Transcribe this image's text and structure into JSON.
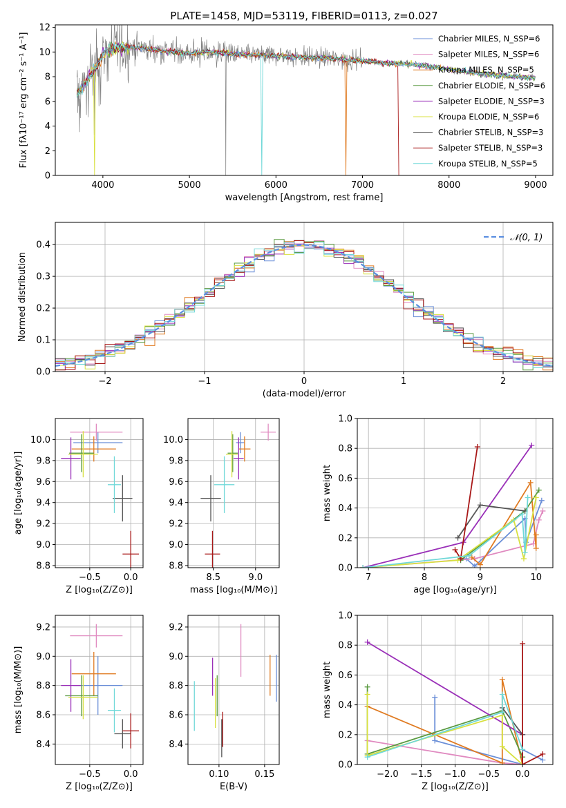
{
  "chart_data": [
    {
      "type": "line",
      "title": "PLATE=1458, MJD=53119, FIBERID=0113, z=0.027",
      "xlabel": "wavelength [Angstrom, rest frame]",
      "ylabel": "Flux [fλ10⁻¹⁷ erg cm⁻² s⁻¹ A⁻¹]",
      "xlim": [
        3450,
        9200
      ],
      "ylim": [
        0,
        12.2
      ],
      "xticks": [
        4000,
        5000,
        6000,
        7000,
        8000,
        9000
      ],
      "yticks": [
        0,
        2,
        4,
        6,
        8,
        10,
        12
      ],
      "grid": false,
      "legend_position": "top-right",
      "series": [
        {
          "name": "Chabrier MILES, N_SSP=6",
          "color": "#6b8fd8"
        },
        {
          "name": "Salpeter MILES, N_SSP=6",
          "color": "#e08ac0"
        },
        {
          "name": "Kroupa MILES, N_SSP=5",
          "color": "#e07b22"
        },
        {
          "name": "Chabrier ELODIE, N_SSP=6",
          "color": "#5a9a40"
        },
        {
          "name": "Salpeter ELODIE, N_SSP=3",
          "color": "#9a30b8"
        },
        {
          "name": "Kroupa ELODIE, N_SSP=6",
          "color": "#d8e040"
        },
        {
          "name": "Chabrier STELIB, N_SSP=3",
          "color": "#555555"
        },
        {
          "name": "Salpeter STELIB, N_SSP=3",
          "color": "#a81818"
        },
        {
          "name": "Kroupa STELIB, N_SSP=5",
          "color": "#70d8d8"
        }
      ],
      "data_color": "#808080",
      "continuum": {
        "x": [
          3700,
          3800,
          3900,
          4000,
          4100,
          4300,
          4500,
          4700,
          5000,
          5300,
          5600,
          6000,
          6300,
          6600,
          7000,
          7300,
          7600,
          8000,
          8300,
          8600,
          9000
        ],
        "y": [
          6.5,
          7.6,
          8.6,
          9.8,
          10.3,
          10.4,
          10.3,
          10.1,
          9.9,
          10.0,
          9.8,
          9.7,
          9.6,
          9.5,
          9.3,
          9.1,
          9.0,
          8.6,
          8.3,
          8.1,
          7.9
        ]
      }
    },
    {
      "type": "bar",
      "xlabel": "(data-model)/error",
      "ylabel": "Normed distribution",
      "xlim": [
        -2.5,
        2.5
      ],
      "ylim": [
        0,
        0.47
      ],
      "xticks": [
        -2,
        -1,
        0,
        1,
        2
      ],
      "yticks": [
        0.0,
        0.1,
        0.2,
        0.3,
        0.4
      ],
      "grid": true,
      "legend_position": "top-right",
      "reference_curve": {
        "name": "𝒩(0, 1)",
        "color": "#5a8ee0"
      }
    },
    {
      "type": "scatter",
      "xlabel": "Z [log₁₀(Z/Z⊙)]",
      "ylabel": "age  [log₁₀(age/yr)]",
      "xlim": [
        -0.92,
        0.15
      ],
      "ylim": [
        8.78,
        10.2
      ],
      "xticks": [
        -0.5,
        0.0
      ],
      "yticks": [
        8.8,
        9.0,
        9.2,
        9.4,
        9.6,
        9.8,
        10.0
      ],
      "grid": true,
      "points": [
        {
          "series": 0,
          "x": -0.4,
          "y": 9.97,
          "xerr": 0.3,
          "yerr": 0.1
        },
        {
          "series": 1,
          "x": -0.42,
          "y": 10.07,
          "xerr": 0.32,
          "yerr": 0.08
        },
        {
          "series": 2,
          "x": -0.45,
          "y": 9.91,
          "xerr": 0.27,
          "yerr": 0.12
        },
        {
          "series": 3,
          "x": -0.6,
          "y": 9.87,
          "xerr": 0.15,
          "yerr": 0.18
        },
        {
          "series": 4,
          "x": -0.73,
          "y": 9.82,
          "xerr": 0.12,
          "yerr": 0.2
        },
        {
          "series": 5,
          "x": -0.58,
          "y": 9.86,
          "xerr": 0.18,
          "yerr": 0.22
        },
        {
          "series": 6,
          "x": -0.1,
          "y": 9.44,
          "xerr": 0.12,
          "yerr": 0.22
        },
        {
          "series": 7,
          "x": 0.0,
          "y": 8.91,
          "xerr": 0.1,
          "yerr": 0.22
        },
        {
          "series": 8,
          "x": -0.2,
          "y": 9.57,
          "xerr": 0.08,
          "yerr": 0.27
        }
      ]
    },
    {
      "type": "scatter",
      "xlabel": "mass [log₁₀(M/M⊙)]",
      "xlim": [
        8.2,
        9.28
      ],
      "ylim": [
        8.78,
        10.2
      ],
      "xticks": [
        8.5,
        9.0
      ],
      "yticks": [
        8.8,
        9.0,
        9.2,
        9.4,
        9.6,
        9.8,
        10.0
      ],
      "grid": true,
      "points": [
        {
          "series": 0,
          "x": 8.82,
          "y": 9.97,
          "xerr": 0.05,
          "yerr": 0.1
        },
        {
          "series": 1,
          "x": 9.15,
          "y": 10.07,
          "xerr": 0.09,
          "yerr": 0.08
        },
        {
          "series": 2,
          "x": 8.87,
          "y": 9.91,
          "xerr": 0.07,
          "yerr": 0.12
        },
        {
          "series": 3,
          "x": 8.73,
          "y": 9.87,
          "xerr": 0.06,
          "yerr": 0.18
        },
        {
          "series": 4,
          "x": 8.8,
          "y": 9.82,
          "xerr": 0.06,
          "yerr": 0.2
        },
        {
          "series": 5,
          "x": 8.72,
          "y": 9.86,
          "xerr": 0.07,
          "yerr": 0.22
        },
        {
          "series": 6,
          "x": 8.47,
          "y": 9.44,
          "xerr": 0.12,
          "yerr": 0.22
        },
        {
          "series": 7,
          "x": 8.49,
          "y": 8.91,
          "xerr": 0.09,
          "yerr": 0.22
        },
        {
          "series": 8,
          "x": 8.63,
          "y": 9.57,
          "xerr": 0.12,
          "yerr": 0.27
        }
      ]
    },
    {
      "type": "line",
      "xlabel": "age  [log₁₀(age/yr)]",
      "ylabel": "mass weight",
      "xlim": [
        6.8,
        10.3
      ],
      "ylim": [
        0,
        1.0
      ],
      "xticks": [
        7,
        8,
        9,
        10
      ],
      "yticks": [
        0.0,
        0.2,
        0.4,
        0.6,
        0.8,
        1.0
      ],
      "grid": true,
      "series": [
        {
          "series": 0,
          "x": [
            8.75,
            8.9,
            9.8,
            9.82,
            10.1
          ],
          "y": [
            0.06,
            0.01,
            0.33,
            0.17,
            0.45
          ]
        },
        {
          "series": 1,
          "x": [
            6.9,
            8.9,
            9.95,
            10.05,
            10.12
          ],
          "y": [
            0.0,
            0.06,
            0.16,
            0.32,
            0.38
          ]
        },
        {
          "series": 2,
          "x": [
            8.85,
            9.0,
            9.9,
            10.0,
            10.0
          ],
          "y": [
            0.07,
            0.02,
            0.57,
            0.13,
            0.22
          ]
        },
        {
          "series": 3,
          "x": [
            8.65,
            9.8,
            10.05
          ],
          "y": [
            0.05,
            0.38,
            0.52
          ]
        },
        {
          "series": 4,
          "x": [
            6.9,
            8.7,
            9.92
          ],
          "y": [
            0.0,
            0.17,
            0.82
          ]
        },
        {
          "series": 5,
          "x": [
            6.9,
            8.6,
            9.6,
            9.78,
            10.0
          ],
          "y": [
            0.0,
            0.05,
            0.32,
            0.06,
            0.47
          ]
        },
        {
          "series": 6,
          "x": [
            8.6,
            9.0,
            9.8
          ],
          "y": [
            0.2,
            0.42,
            0.38
          ]
        },
        {
          "series": 7,
          "x": [
            8.55,
            8.65,
            8.95
          ],
          "y": [
            0.12,
            0.06,
            0.81
          ]
        },
        {
          "series": 8,
          "x": [
            6.9,
            8.8,
            9.75,
            9.8,
            9.85
          ],
          "y": [
            0.0,
            0.08,
            0.36,
            0.1,
            0.47
          ]
        }
      ]
    },
    {
      "type": "scatter",
      "xlabel": "Z [log₁₀(Z/Z⊙)]",
      "ylabel": "mass [log₁₀(M/M⊙)]",
      "xlim": [
        -0.92,
        0.15
      ],
      "ylim": [
        8.26,
        9.28
      ],
      "xticks": [
        -0.5,
        0.0
      ],
      "yticks": [
        8.4,
        8.6,
        8.8,
        9.0,
        9.2
      ],
      "grid": true,
      "points": [
        {
          "series": 0,
          "x": -0.4,
          "y": 8.8,
          "xerr": 0.3,
          "yerr": 0.2
        },
        {
          "series": 1,
          "x": -0.42,
          "y": 9.14,
          "xerr": 0.32,
          "yerr": 0.08
        },
        {
          "series": 2,
          "x": -0.45,
          "y": 8.88,
          "xerr": 0.27,
          "yerr": 0.15
        },
        {
          "series": 3,
          "x": -0.6,
          "y": 8.73,
          "xerr": 0.2,
          "yerr": 0.14
        },
        {
          "series": 4,
          "x": -0.73,
          "y": 8.8,
          "xerr": 0.12,
          "yerr": 0.18
        },
        {
          "series": 5,
          "x": -0.58,
          "y": 8.72,
          "xerr": 0.18,
          "yerr": 0.15
        },
        {
          "series": 6,
          "x": -0.1,
          "y": 8.47,
          "xerr": 0.1,
          "yerr": 0.1
        },
        {
          "series": 7,
          "x": 0.0,
          "y": 8.49,
          "xerr": 0.1,
          "yerr": 0.12
        },
        {
          "series": 8,
          "x": -0.2,
          "y": 8.63,
          "xerr": 0.08,
          "yerr": 0.15
        }
      ]
    },
    {
      "type": "scatter",
      "xlabel": "E(B-V)",
      "xlim": [
        0.066,
        0.166
      ],
      "ylim": [
        8.26,
        9.28
      ],
      "xticks": [
        0.1,
        0.15
      ],
      "yticks": [
        8.4,
        8.6,
        8.8,
        9.0,
        9.2
      ],
      "grid": true,
      "points": [
        {
          "series": 0,
          "x": 0.163,
          "y": 8.85,
          "yerr": 0.16
        },
        {
          "series": 1,
          "x": 0.124,
          "y": 9.04,
          "yerr": 0.18
        },
        {
          "series": 2,
          "x": 0.156,
          "y": 8.87,
          "yerr": 0.14
        },
        {
          "series": 3,
          "x": 0.098,
          "y": 8.73,
          "yerr": 0.14
        },
        {
          "series": 4,
          "x": 0.093,
          "y": 8.86,
          "yerr": 0.13
        },
        {
          "series": 5,
          "x": 0.096,
          "y": 8.68,
          "yerr": 0.17
        },
        {
          "series": 6,
          "x": 0.103,
          "y": 8.44,
          "yerr": 0.13
        },
        {
          "series": 7,
          "x": 0.104,
          "y": 8.5,
          "yerr": 0.12
        },
        {
          "series": 8,
          "x": 0.073,
          "y": 8.66,
          "yerr": 0.17
        }
      ]
    },
    {
      "type": "line",
      "xlabel": "Z [log₁₀(Z/Z⊙)]",
      "ylabel": "mass weight",
      "xlim": [
        -2.45,
        0.45
      ],
      "ylim": [
        0,
        1.0
      ],
      "xticks": [
        -2.0,
        -1.5,
        -1.0,
        -0.5,
        0.0
      ],
      "yticks": [
        0.0,
        0.2,
        0.4,
        0.6,
        0.8,
        1.0
      ],
      "grid": true,
      "series": [
        {
          "series": 0,
          "x": [
            -1.3,
            -1.3,
            0.0,
            0.0,
            0.3
          ],
          "y": [
            0.45,
            0.16,
            0.0,
            0.1,
            0.03
          ]
        },
        {
          "series": 1,
          "x": [
            -2.3,
            -0.3,
            0.0
          ],
          "y": [
            0.16,
            0.01,
            0.0
          ]
        },
        {
          "series": 2,
          "x": [
            -2.3,
            -1.3,
            -0.3,
            -0.3,
            0.0
          ],
          "y": [
            0.39,
            0.2,
            0.01,
            0.57,
            0.0
          ]
        },
        {
          "series": 3,
          "x": [
            -2.3,
            -2.3,
            -0.3,
            0.0
          ],
          "y": [
            0.52,
            0.07,
            0.36,
            0.05
          ]
        },
        {
          "series": 4,
          "x": [
            -2.3,
            0.0,
            0.0
          ],
          "y": [
            0.82,
            0.2,
            0.0
          ]
        },
        {
          "series": 5,
          "x": [
            -2.3,
            -2.3,
            -0.3,
            -0.3,
            0.0
          ],
          "y": [
            0.47,
            0.06,
            0.33,
            0.12,
            0.0
          ]
        },
        {
          "series": 6,
          "x": [
            -0.3,
            0.0
          ],
          "y": [
            0.38,
            0.2
          ]
        },
        {
          "series": 7,
          "x": [
            0.0,
            0.0,
            0.3
          ],
          "y": [
            0.81,
            0.0,
            0.07
          ]
        },
        {
          "series": 8,
          "x": [
            -2.3,
            -0.3,
            -0.3,
            0.0
          ],
          "y": [
            0.05,
            0.35,
            0.47,
            0.1
          ]
        }
      ]
    }
  ]
}
